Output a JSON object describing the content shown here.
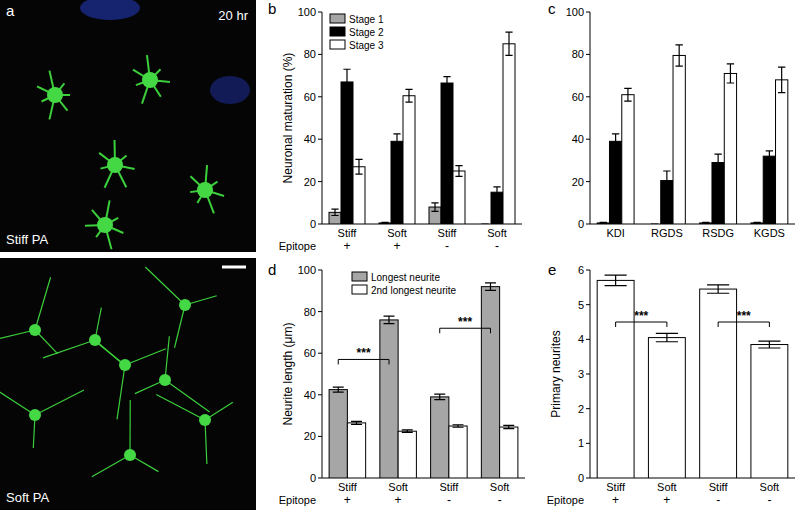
{
  "chart_data": [
    {
      "type": "image",
      "panel_label": "a",
      "annotations": [
        "20 hr",
        "Stiff PA",
        "Soft PA"
      ]
    },
    {
      "type": "bar",
      "panel_label": "b",
      "y_label": "Neuronal maturation (%)",
      "categories": [
        "Stiff",
        "Soft",
        "Stiff",
        "Soft"
      ],
      "category_row2": {
        "label": "Epitope",
        "values": [
          "+",
          "+",
          "-",
          "-"
        ]
      },
      "series": [
        {
          "name": "Stage 1",
          "color": "#a6a6a6",
          "values": [
            5.5,
            0.5,
            8,
            0
          ],
          "errors": [
            1.5,
            0.3,
            2,
            0
          ]
        },
        {
          "name": "Stage 2",
          "color": "#000000",
          "values": [
            67,
            39,
            66.5,
            15
          ],
          "errors": [
            6,
            3.5,
            3,
            2.5
          ]
        },
        {
          "name": "Stage 3",
          "color": "#ffffff",
          "values": [
            27,
            60.5,
            25,
            85
          ],
          "errors": [
            3.5,
            3,
            2.5,
            5.5
          ]
        }
      ],
      "ylim": [
        0,
        100
      ],
      "yticks": [
        0,
        20,
        40,
        60,
        80,
        100
      ],
      "legend": "upper left"
    },
    {
      "type": "bar",
      "panel_label": "c",
      "categories": [
        "KDI",
        "RGDS",
        "RSDG",
        "KGDS"
      ],
      "series": [
        {
          "color": "#a6a6a6",
          "values": [
            0.5,
            0,
            0.5,
            0.5
          ],
          "errors": [
            0.3,
            0,
            0.3,
            0.3
          ]
        },
        {
          "color": "#000000",
          "values": [
            39,
            20.5,
            29,
            32
          ],
          "errors": [
            3.5,
            4.5,
            4,
            2.5
          ]
        },
        {
          "color": "#ffffff",
          "values": [
            61,
            79.5,
            71,
            68
          ],
          "errors": [
            3,
            5,
            4.5,
            6
          ]
        }
      ],
      "ylim": [
        0,
        100
      ],
      "yticks": [
        0,
        20,
        40,
        60,
        80,
        100
      ]
    },
    {
      "type": "bar",
      "panel_label": "d",
      "y_label": "Neurite length (μm)",
      "categories": [
        "Stiff",
        "Soft",
        "Stiff",
        "Soft"
      ],
      "category_row2": {
        "label": "Epitope",
        "values": [
          "+",
          "+",
          "-",
          "-"
        ]
      },
      "series": [
        {
          "name": "Longest neurite",
          "color": "#a6a6a6",
          "values": [
            42.5,
            76,
            39,
            92
          ],
          "errors": [
            1.2,
            1.8,
            1.3,
            1.8
          ]
        },
        {
          "name": "2nd longest neurite",
          "color": "#ffffff",
          "values": [
            26.5,
            22.5,
            25,
            24.5
          ],
          "errors": [
            0.7,
            0.6,
            0.6,
            0.8
          ]
        }
      ],
      "significance": [
        {
          "label": "***",
          "from": 0,
          "to": 1,
          "series": 0,
          "y": 57
        },
        {
          "label": "***",
          "from": 2,
          "to": 3,
          "series": 0,
          "y": 72
        }
      ],
      "ylim": [
        0,
        100
      ],
      "yticks": [
        0,
        20,
        40,
        60,
        80,
        100
      ],
      "legend": "upper center"
    },
    {
      "type": "bar",
      "panel_label": "e",
      "y_label": "Primary neurites",
      "categories": [
        "Stiff",
        "Soft",
        "Stiff",
        "Soft"
      ],
      "category_row2": {
        "label": "Epitope",
        "values": [
          "+",
          "+",
          "-",
          "-"
        ]
      },
      "series": [
        {
          "color": "#ffffff",
          "values": [
            5.7,
            4.05,
            5.45,
            3.85
          ],
          "errors": [
            0.15,
            0.12,
            0.12,
            0.1
          ]
        }
      ],
      "significance": [
        {
          "label": "***",
          "from": 0,
          "to": 1,
          "series": 0,
          "y": 4.5
        },
        {
          "label": "***",
          "from": 2,
          "to": 3,
          "series": 0,
          "y": 4.5
        }
      ],
      "ylim": [
        0,
        6
      ],
      "yticks": [
        0,
        1,
        2,
        3,
        4,
        5,
        6
      ]
    }
  ]
}
